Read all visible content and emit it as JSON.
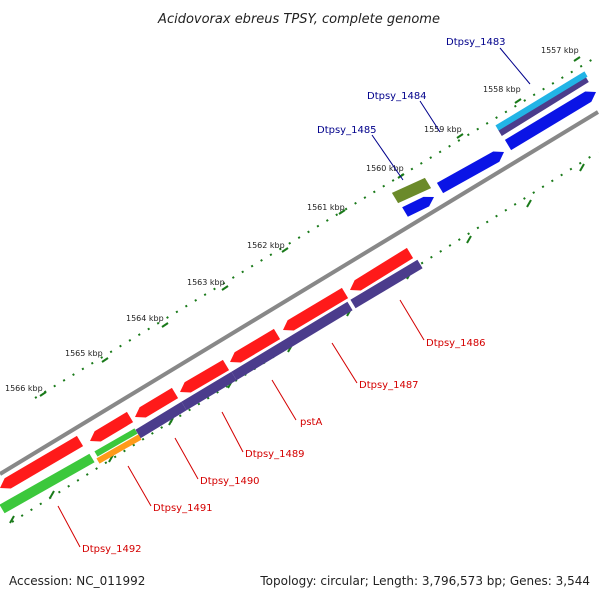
{
  "title": "Acidovorax ebreus TPSY, complete genome",
  "footer": {
    "accession": "Accession: NC_011992",
    "topology": "Topology: circular; Length: 3,796,573 bp; Genes: 3,544"
  },
  "colors": {
    "backbone": "#888888",
    "tick": "#1a7a1a",
    "forward_label": "#00008b",
    "reverse_label": "#d40000",
    "red": "#ff1a1a",
    "purple": "#4b3c8c",
    "blue": "#0a14e6",
    "cyan": "#22b4e6",
    "green": "#3cc83c",
    "orange": "#ff9a1a",
    "olive": "#6b8a2a"
  },
  "ruler": [
    {
      "label": "1557 kbp"
    },
    {
      "label": "1558 kbp"
    },
    {
      "label": "1559 kbp"
    },
    {
      "label": "1560 kbp"
    },
    {
      "label": "1561 kbp"
    },
    {
      "label": "1562 kbp"
    },
    {
      "label": "1563 kbp"
    },
    {
      "label": "1564 kbp"
    },
    {
      "label": "1565 kbp"
    },
    {
      "label": "1566 kbp"
    }
  ],
  "genes": [
    {
      "label": "Dtpsy_1483",
      "strand": "forward"
    },
    {
      "label": "Dtpsy_1484",
      "strand": "forward"
    },
    {
      "label": "Dtpsy_1485",
      "strand": "forward"
    },
    {
      "label": "Dtpsy_1486",
      "strand": "reverse"
    },
    {
      "label": "Dtpsy_1487",
      "strand": "reverse"
    },
    {
      "label": "pstA",
      "strand": "reverse"
    },
    {
      "label": "Dtpsy_1489",
      "strand": "reverse"
    },
    {
      "label": "Dtpsy_1490",
      "strand": "reverse"
    },
    {
      "label": "Dtpsy_1491",
      "strand": "reverse"
    },
    {
      "label": "Dtpsy_1492",
      "strand": "reverse"
    }
  ]
}
